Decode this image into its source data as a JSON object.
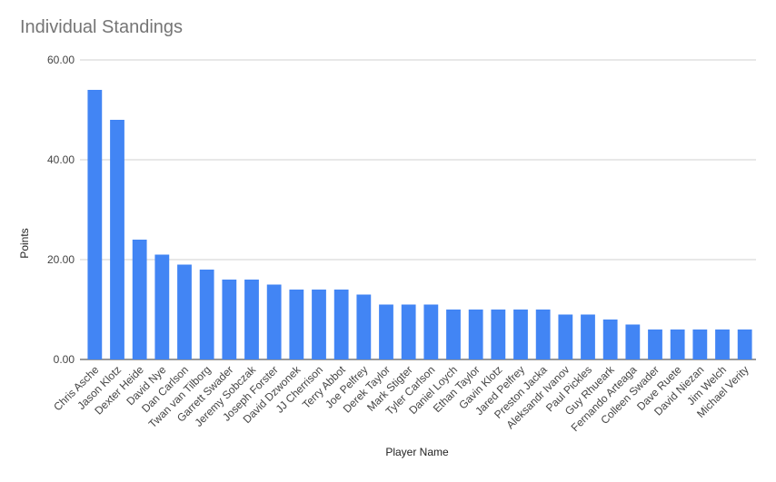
{
  "chart_data": {
    "type": "bar",
    "title": "Individual Standings",
    "xlabel": "Player Name",
    "ylabel": "Points",
    "ylim": [
      0,
      60
    ],
    "yticks": [
      "0.00",
      "20.00",
      "40.00",
      "60.00"
    ],
    "grid": true,
    "bar_color": "#4285f4",
    "categories": [
      "Chris Asche",
      "Jason Klotz",
      "Dexter Heide",
      "David Nye",
      "Dan Carlson",
      "Twan van Tilborg",
      "Garrett Swader",
      "Jeremy Sobczak",
      "Joseph Forster",
      "David Dzwonek",
      "JJ Cherrison",
      "Terry Abbot",
      "Joe Pelfrey",
      "Derek Taylor",
      "Mark Stigter",
      "Tyler Carlson",
      "Daniel Loych",
      "Ethan Taylor",
      "Gavin Klotz",
      "Jared Pelfrey",
      "Preston Jacka",
      "Aleksandr Ivanov",
      "Paul Pickles",
      "Guy Rhueark",
      "Fernando Arteaga",
      "Colleen Swader",
      "Dave Ruete",
      "David Niezan",
      "Jim Welch",
      "Michael Verity"
    ],
    "values": [
      54,
      48,
      24,
      21,
      19,
      18,
      16,
      16,
      15,
      14,
      14,
      14,
      13,
      11,
      11,
      11,
      10,
      10,
      10,
      10,
      10,
      9,
      9,
      8,
      7,
      6,
      6,
      6,
      6,
      6
    ]
  }
}
